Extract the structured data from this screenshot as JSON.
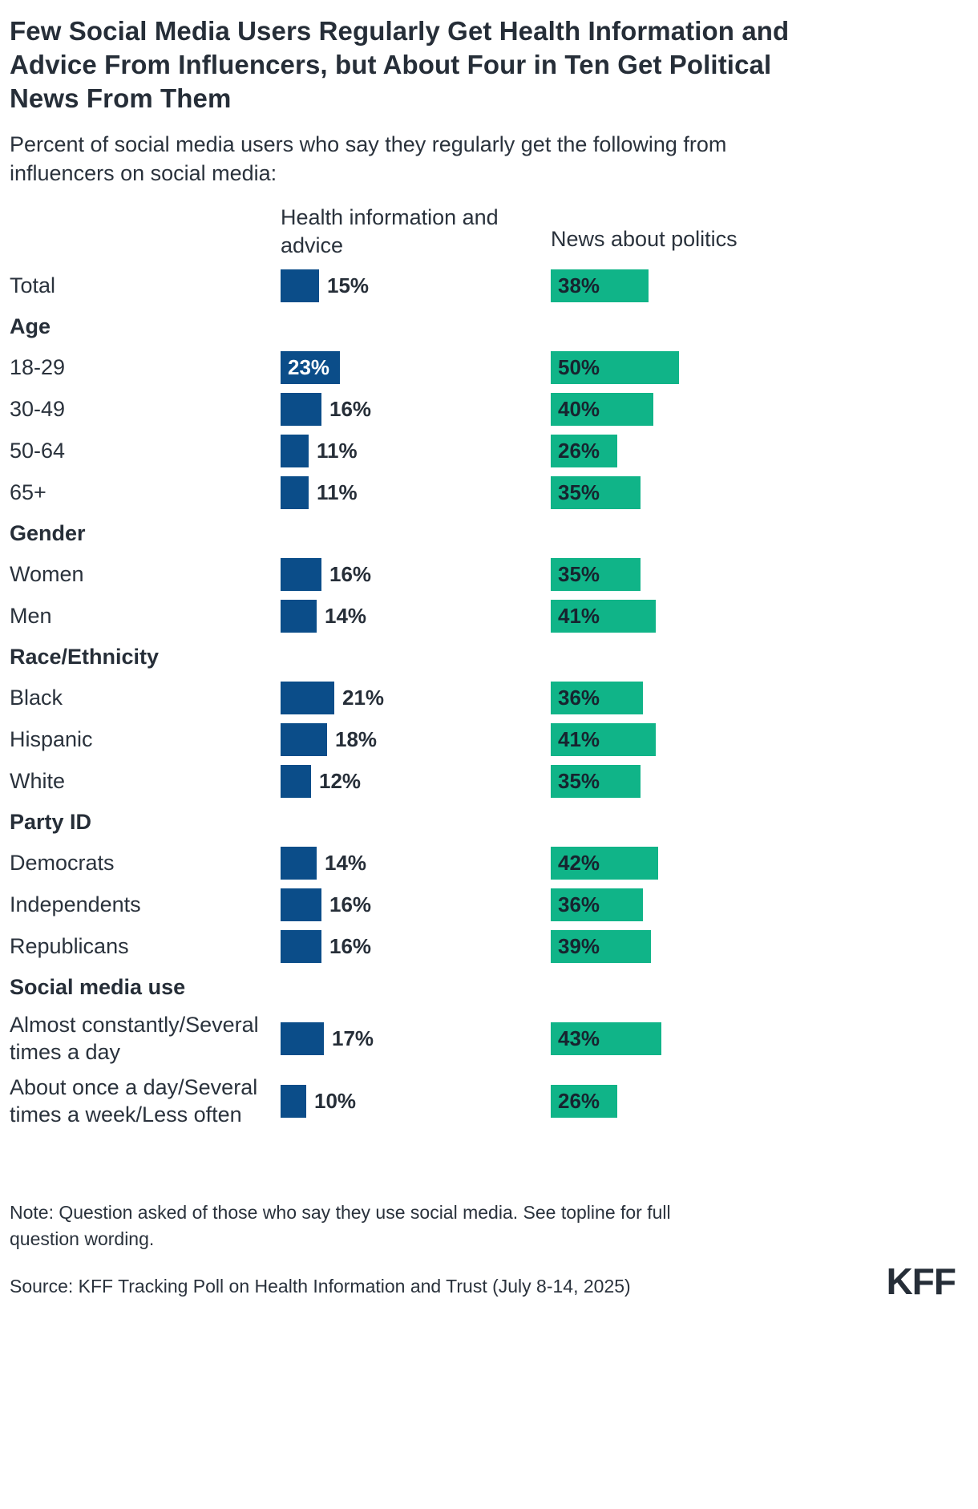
{
  "title": "Few Social Media Users Regularly Get Health Information and Advice From Influencers, but About Four in Ten Get Political News From Them",
  "subtitle": "Percent of social media users who say they regularly get the following from influencers on social media:",
  "columns": {
    "health": "Health information and advice",
    "politics": "News about politics"
  },
  "colors": {
    "health": "#0b4d89",
    "politics": "#10b488",
    "text": "#29313b",
    "value_on_teal": "#17242f",
    "value_on_blue": "#ffffff"
  },
  "chart_data": {
    "type": "bar",
    "orientation": "horizontal",
    "unit": "%",
    "xlim": [
      0,
      100
    ],
    "legend_position": "column-headers",
    "grid": false,
    "series": [
      {
        "name": "Health information and advice",
        "color": "#0b4d89"
      },
      {
        "name": "News about politics",
        "color": "#10b488"
      }
    ],
    "rows": [
      {
        "type": "data",
        "label": "Total",
        "health": 15,
        "politics": 38
      },
      {
        "type": "section",
        "label": "Age"
      },
      {
        "type": "data",
        "label": "18-29",
        "health": 23,
        "politics": 50
      },
      {
        "type": "data",
        "label": "30-49",
        "health": 16,
        "politics": 40
      },
      {
        "type": "data",
        "label": "50-64",
        "health": 11,
        "politics": 26
      },
      {
        "type": "data",
        "label": "65+",
        "health": 11,
        "politics": 35
      },
      {
        "type": "section",
        "label": "Gender"
      },
      {
        "type": "data",
        "label": "Women",
        "health": 16,
        "politics": 35
      },
      {
        "type": "data",
        "label": "Men",
        "health": 14,
        "politics": 41
      },
      {
        "type": "section",
        "label": "Race/Ethnicity"
      },
      {
        "type": "data",
        "label": "Black",
        "health": 21,
        "politics": 36
      },
      {
        "type": "data",
        "label": "Hispanic",
        "health": 18,
        "politics": 41
      },
      {
        "type": "data",
        "label": "White",
        "health": 12,
        "politics": 35
      },
      {
        "type": "section",
        "label": "Party ID"
      },
      {
        "type": "data",
        "label": "Democrats",
        "health": 14,
        "politics": 42
      },
      {
        "type": "data",
        "label": "Independents",
        "health": 16,
        "politics": 36
      },
      {
        "type": "data",
        "label": "Republicans",
        "health": 16,
        "politics": 39
      },
      {
        "type": "section",
        "label": "Social media use"
      },
      {
        "type": "data",
        "label": "Almost constantly/Several times a day",
        "health": 17,
        "politics": 43,
        "tall": true
      },
      {
        "type": "data",
        "label": "About once a day/Several times a week/Less often",
        "health": 10,
        "politics": 26,
        "tall": true
      }
    ]
  },
  "note": "Note: Question asked of those who say they use social media. See topline for full question wording.",
  "source": "Source: KFF Tracking Poll on Health Information and Trust (July 8-14, 2025)",
  "logo": "KFF"
}
